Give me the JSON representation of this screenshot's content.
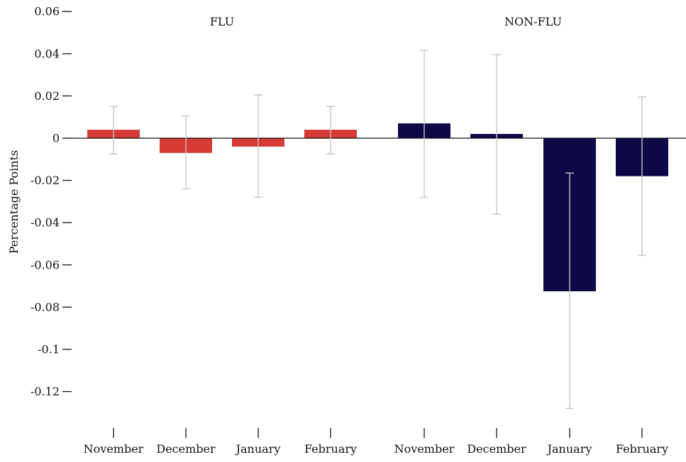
{
  "chart_data": {
    "type": "bar",
    "ylabel": "Percentage Points",
    "ylim": [
      -0.14,
      0.06
    ],
    "yticks": [
      {
        "value": 0.06,
        "label": "0.06"
      },
      {
        "value": 0.04,
        "label": "0.04"
      },
      {
        "value": 0.02,
        "label": "0.02"
      },
      {
        "value": 0,
        "label": "0"
      },
      {
        "value": -0.02,
        "label": "-0.02"
      },
      {
        "value": -0.04,
        "label": "-0.04"
      },
      {
        "value": -0.06,
        "label": "-0.06"
      },
      {
        "value": -0.08,
        "label": "-0.08"
      },
      {
        "value": -0.1,
        "label": "-0.1"
      },
      {
        "value": -0.12,
        "label": "-0.12"
      }
    ],
    "grid": false,
    "groups": [
      {
        "name": "FLU",
        "color": "#d63a34",
        "categories": [
          "November",
          "December",
          "January",
          "February"
        ],
        "values": [
          0.004,
          -0.007,
          -0.004,
          0.004
        ],
        "ci_low": [
          -0.0075,
          -0.024,
          -0.028,
          -0.0075
        ],
        "ci_high": [
          0.015,
          0.0105,
          0.0205,
          0.015
        ]
      },
      {
        "name": "NON-FLU",
        "color": "#0d0848",
        "categories": [
          "November",
          "December",
          "January",
          "February"
        ],
        "values": [
          0.007,
          0.002,
          -0.0725,
          -0.018
        ],
        "ci_low": [
          -0.028,
          -0.036,
          -0.128,
          -0.0555
        ],
        "ci_high": [
          0.0415,
          0.0395,
          -0.0165,
          0.0195
        ]
      }
    ],
    "error_bar_color": "#c8c4c0"
  }
}
